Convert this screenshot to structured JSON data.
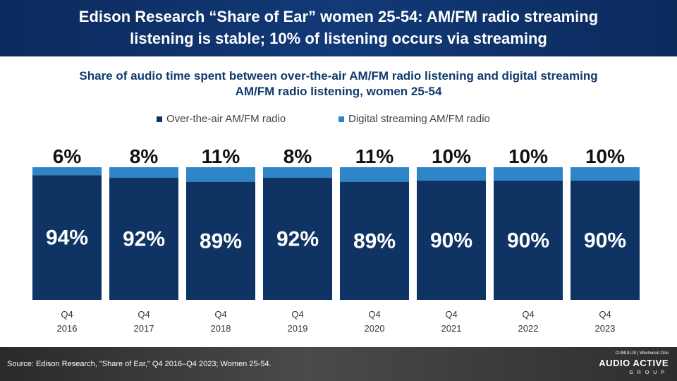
{
  "header": {
    "title_line1": "Edison Research “Share of Ear” women 25-54: AM/FM radio streaming",
    "title_line2": "listening is stable; 10% of listening occurs via streaming"
  },
  "chart_data": {
    "type": "bar",
    "stacked": true,
    "title_line1": "Share of audio time spent between over-the-air AM/FM radio listening and digital streaming",
    "title_line2": "AM/FM radio listening, women 25-54",
    "categories": [
      "Q4\n2016",
      "Q4\n2017",
      "Q4\n2018",
      "Q4\n2019",
      "Q4\n2020",
      "Q4\n2021",
      "Q4\n2022",
      "Q4\n2023"
    ],
    "series": [
      {
        "name": "Over-the-air AM/FM radio",
        "color": "#0f3464",
        "values": [
          94,
          92,
          89,
          92,
          89,
          90,
          90,
          90
        ]
      },
      {
        "name": "Digital streaming AM/FM radio",
        "color": "#2e86c8",
        "values": [
          6,
          8,
          11,
          8,
          11,
          10,
          10,
          10
        ]
      }
    ],
    "ylim": [
      0,
      100
    ],
    "legend": "top",
    "grid": false,
    "value_format": "%"
  },
  "footer": {
    "source": "Source: Edison Research, \"Share of Ear,\" Q4 2016–Q4 2023; Women 25-54.",
    "logo_small": "CUMULUS | Westwood One",
    "logo_main": "AUDIO ACTIVE",
    "logo_sub": "GROUP"
  }
}
